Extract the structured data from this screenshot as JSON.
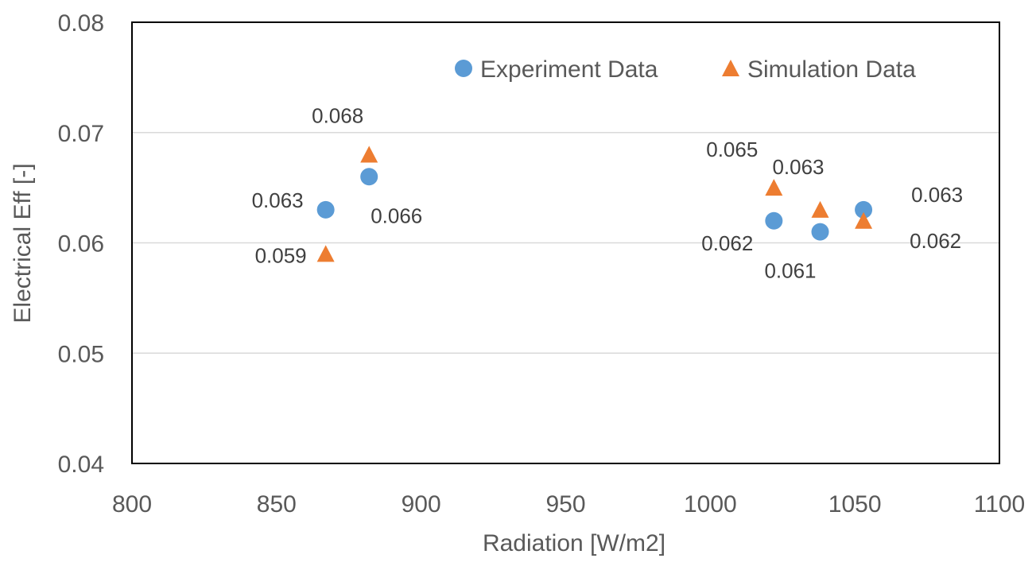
{
  "chart_data": {
    "type": "scatter",
    "title": "",
    "xlabel": "Radiation [W/m2]",
    "ylabel": "Electrical Eff [-]",
    "xlim": [
      800,
      1100
    ],
    "ylim": [
      0.04,
      0.08
    ],
    "x_ticks": [
      800,
      850,
      900,
      950,
      1000,
      1050,
      1100
    ],
    "y_ticks": [
      0.04,
      0.05,
      0.06,
      0.07,
      0.08
    ],
    "x_tick_labels": [
      "800",
      "850",
      "900",
      "950",
      "1000",
      "1050",
      "1100"
    ],
    "y_tick_labels": [
      "0.04",
      "0.05",
      "0.06",
      "0.07",
      "0.08"
    ],
    "grid": "horizontal",
    "legend_position": "top-right",
    "series": [
      {
        "name": "Experiment Data",
        "marker": "circle",
        "color": "#5B9BD5",
        "points": [
          {
            "x": 867,
            "y": 0.063,
            "label": "0.063"
          },
          {
            "x": 882,
            "y": 0.066,
            "label": "0.066"
          },
          {
            "x": 1022,
            "y": 0.062,
            "label": "0.062"
          },
          {
            "x": 1038,
            "y": 0.061,
            "label": "0.061"
          },
          {
            "x": 1053,
            "y": 0.063,
            "label": "0.063"
          }
        ]
      },
      {
        "name": "Simulation Data",
        "marker": "triangle",
        "color": "#ED7D31",
        "points": [
          {
            "x": 867,
            "y": 0.059,
            "label": "0.059"
          },
          {
            "x": 882,
            "y": 0.068,
            "label": "0.068"
          },
          {
            "x": 1022,
            "y": 0.065,
            "label": "0.065"
          },
          {
            "x": 1038,
            "y": 0.063,
            "label": "0.063"
          },
          {
            "x": 1053,
            "y": 0.062,
            "label": "0.062"
          }
        ]
      }
    ]
  }
}
